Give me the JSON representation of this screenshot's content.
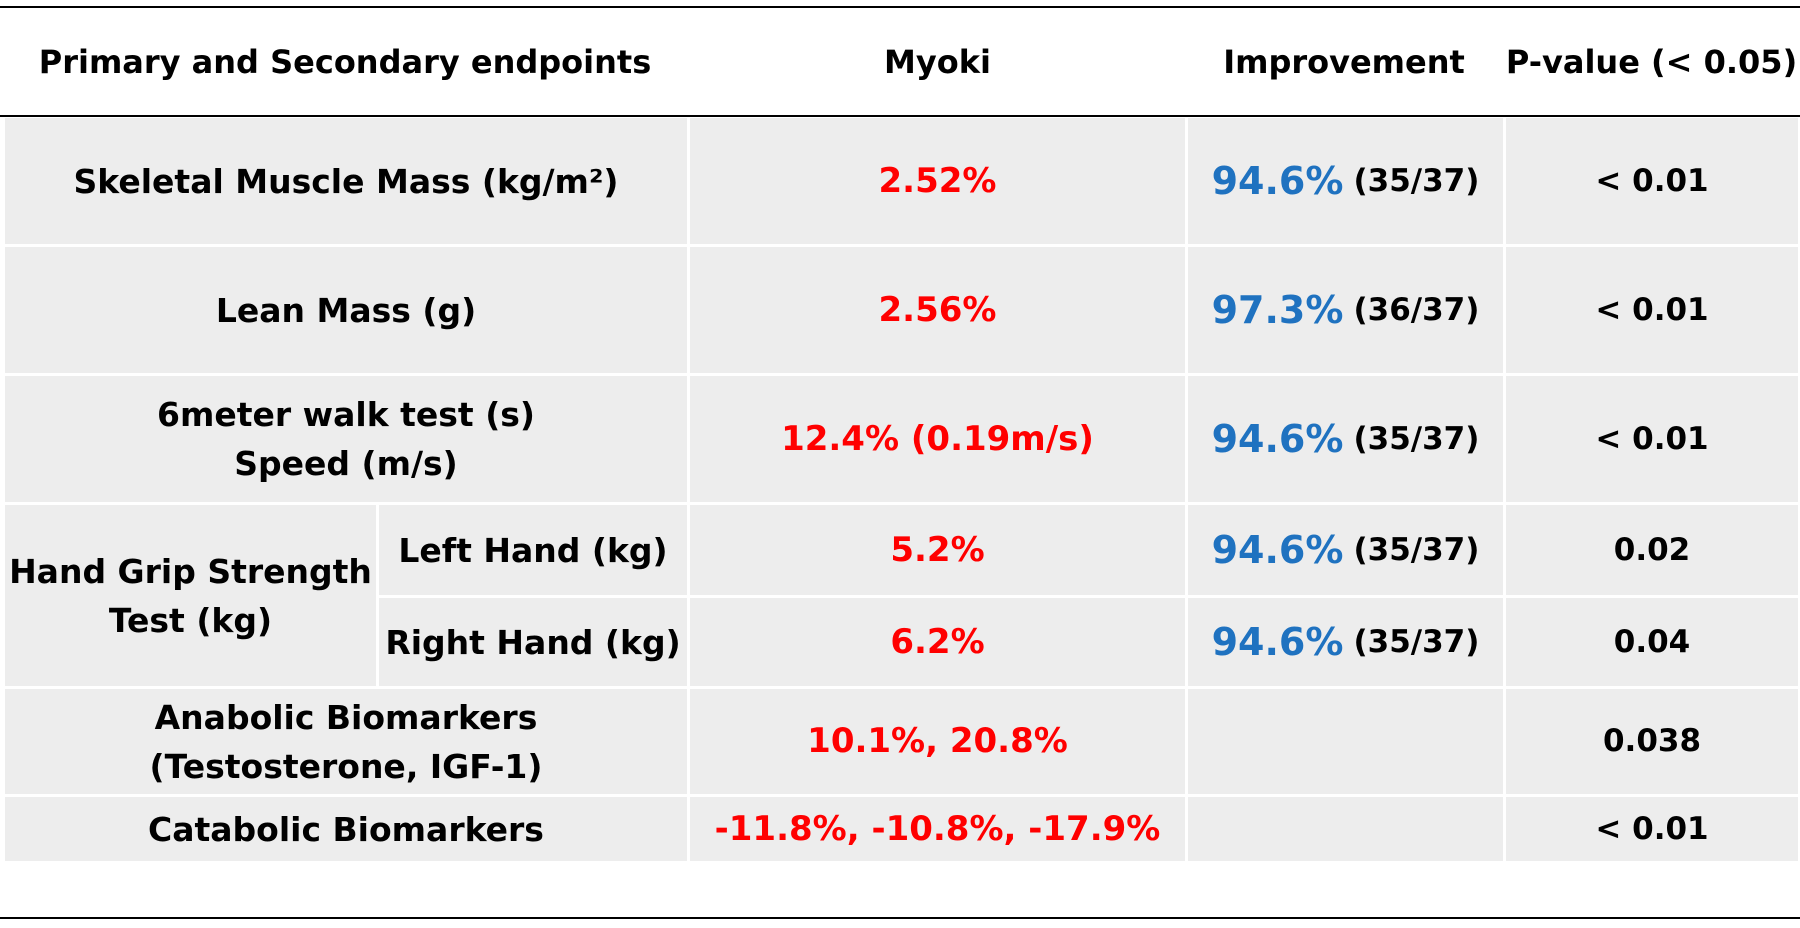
{
  "chart_data": {
    "type": "table",
    "columns": [
      "Primary and Secondary endpoints",
      "Myoki",
      "Improvement",
      "P-value (< 0.05)"
    ],
    "rows": [
      {
        "endpoint": "Skeletal Muscle Mass (kg/m²)",
        "myoki": "2.52%",
        "improvement_pct": "94.6%",
        "improvement_frac": "(35/37)",
        "p_value": "< 0.01"
      },
      {
        "endpoint": "Lean Mass (g)",
        "myoki": "2.56%",
        "improvement_pct": "97.3%",
        "improvement_frac": "(36/37)",
        "p_value": "< 0.01"
      },
      {
        "endpoint_line1": "6meter walk test (s)",
        "endpoint_line2": "Speed (m/s)",
        "myoki": "12.4% (0.19m/s)",
        "improvement_pct": "94.6%",
        "improvement_frac": "(35/37)",
        "p_value": "< 0.01"
      },
      {
        "group_line1": "Hand Grip Strength",
        "group_line2": "Test (kg)",
        "sub": "Left Hand (kg)",
        "myoki": "5.2%",
        "improvement_pct": "94.6%",
        "improvement_frac": "(35/37)",
        "p_value": "0.02"
      },
      {
        "sub": "Right Hand (kg)",
        "myoki": "6.2%",
        "improvement_pct": "94.6%",
        "improvement_frac": "(35/37)",
        "p_value": "0.04"
      },
      {
        "endpoint_line1": "Anabolic Biomarkers",
        "endpoint_line2": "(Testosterone, IGF-1)",
        "myoki": "10.1%, 20.8%",
        "improvement_pct": "",
        "improvement_frac": "",
        "p_value": "0.038"
      },
      {
        "endpoint": "Catabolic Biomarkers",
        "myoki": "-11.8%, -10.8%, -17.9%",
        "improvement_pct": "",
        "improvement_frac": "",
        "p_value": "< 0.01"
      }
    ]
  },
  "colors": {
    "myoki_value": "#ff0000",
    "improvement_pct": "#1f72c0",
    "row_fill": "#ededed",
    "cell_border": "#ffffff"
  }
}
